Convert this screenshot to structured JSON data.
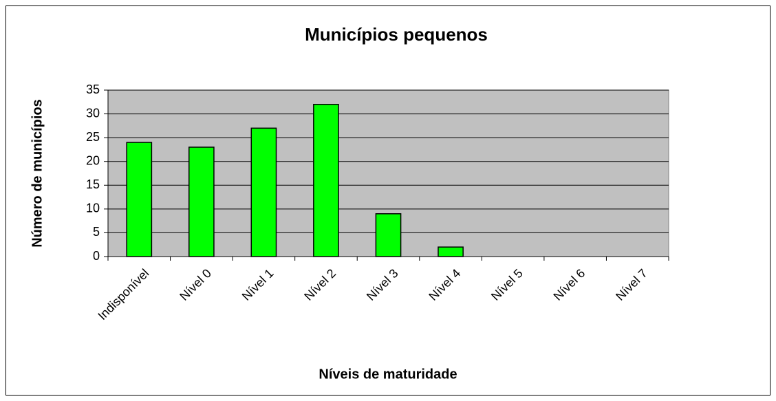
{
  "chart_data": {
    "type": "bar",
    "title": "Municípios pequenos",
    "y_label": "Número de municípios",
    "x_label": "Níveis de maturidade",
    "categories": [
      "Indisponível",
      "Nível 0",
      "Nível 1",
      "Nível 2",
      "Nível 3",
      "Nível 4",
      "Nível 5",
      "Nível 6",
      "Nível 7"
    ],
    "values": [
      24,
      23,
      27,
      32,
      9,
      2,
      0,
      0,
      0
    ],
    "color": "#00ff00",
    "ylim": [
      0,
      35
    ],
    "yticks": [
      0,
      5,
      10,
      15,
      20,
      25,
      30,
      35
    ],
    "grid": true
  }
}
